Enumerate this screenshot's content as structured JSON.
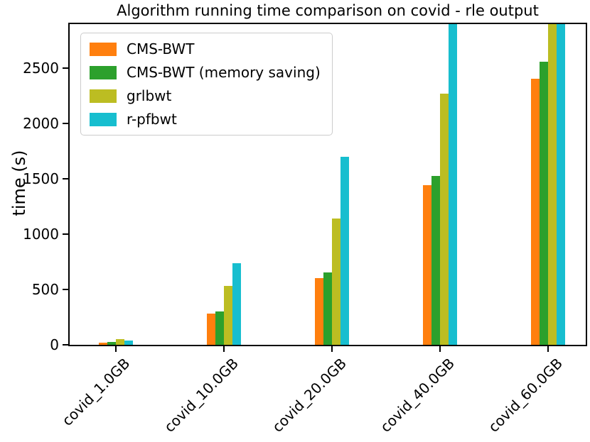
{
  "title": "Algorithm running time comparison on covid - rle output",
  "ylabel": "time (s)",
  "chart_data": {
    "type": "bar",
    "title": "Algorithm running time comparison on covid - rle output",
    "xlabel": "",
    "ylabel": "time (s)",
    "categories": [
      "covid_1.0GB",
      "covid_10.0GB",
      "covid_20.0GB",
      "covid_40.0GB",
      "covid_60.0GB"
    ],
    "series": [
      {
        "name": "CMS-BWT",
        "color": "#ff7f0e",
        "values": [
          20,
          285,
          605,
          1445,
          2405
        ]
      },
      {
        "name": "CMS-BWT (memory saving)",
        "color": "#2ca02c",
        "values": [
          25,
          300,
          655,
          1530,
          2560
        ]
      },
      {
        "name": "grlbwt",
        "color": "#bcbd22",
        "values": [
          54,
          535,
          1145,
          2270,
          2950
        ]
      },
      {
        "name": "r-pfbwt",
        "color": "#17becf",
        "values": [
          38,
          740,
          1700,
          2950,
          2950
        ]
      }
    ],
    "yticks": [
      0,
      500,
      1000,
      1500,
      2000,
      2500
    ],
    "ylim": [
      0,
      2900
    ],
    "clipping_note": "bars with values above ylim max (2900) are clipped at the plot top: r-pfbwt at covid_40.0GB, grlbwt and r-pfbwt at covid_60.0GB; their listed values are lower-bound estimates",
    "grid": false,
    "legend_position": "upper left",
    "axis_color": "#000000"
  }
}
